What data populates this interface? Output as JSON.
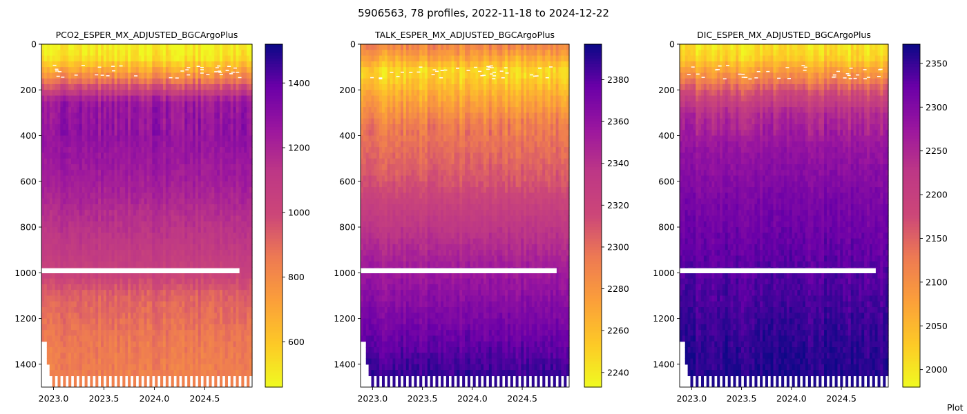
{
  "figure_title": "5906563, 78 profiles, 2022-11-18 to 2024-12-22",
  "footer_text": "Plot",
  "colormap": "plasma",
  "colormap_reversed": true,
  "chart_data": [
    {
      "type": "heatmap",
      "title": "PCO2_ESPER_MX_ADJUSTED_BGCArgoPlus",
      "x_range": [
        2022.88,
        2024.97
      ],
      "x_ticks": [
        2023.0,
        2023.5,
        2024.0,
        2024.5
      ],
      "x_tick_labels": [
        "2023.0",
        "2023.5",
        "2024.0",
        "2024.5"
      ],
      "y_range": [
        0,
        1500
      ],
      "y_inverted": true,
      "y_ticks": [
        0,
        200,
        400,
        600,
        800,
        1000,
        1200,
        1400
      ],
      "y_tick_labels": [
        "0",
        "200",
        "400",
        "600",
        "800",
        "1000",
        "1200",
        "1400"
      ],
      "colorbar_range": [
        460,
        1520
      ],
      "colorbar_ticks": [
        600,
        800,
        1000,
        1200,
        1400
      ],
      "colorbar_tick_labels": [
        "600",
        "800",
        "1000",
        "1200",
        "1400"
      ],
      "profile": [
        {
          "depth": 0,
          "value": 470
        },
        {
          "depth": 60,
          "value": 520
        },
        {
          "depth": 110,
          "value": 680
        },
        {
          "depth": 170,
          "value": 900
        },
        {
          "depth": 250,
          "value": 1250
        },
        {
          "depth": 400,
          "value": 1280
        },
        {
          "depth": 600,
          "value": 1230
        },
        {
          "depth": 800,
          "value": 1140
        },
        {
          "depth": 980,
          "value": 1050
        },
        {
          "depth": 1100,
          "value": 920
        },
        {
          "depth": 1300,
          "value": 860
        },
        {
          "depth": 1500,
          "value": 830
        }
      ]
    },
    {
      "type": "heatmap",
      "title": "TALK_ESPER_MX_ADJUSTED_BGCArgoPlus",
      "x_range": [
        2022.88,
        2024.97
      ],
      "x_ticks": [
        2023.0,
        2023.5,
        2024.0,
        2024.5
      ],
      "x_tick_labels": [
        "2023.0",
        "2023.5",
        "2024.0",
        "2024.5"
      ],
      "y_range": [
        0,
        1500
      ],
      "y_inverted": true,
      "y_ticks": [
        0,
        200,
        400,
        600,
        800,
        1000,
        1200,
        1400
      ],
      "y_tick_labels": [
        "0",
        "200",
        "400",
        "600",
        "800",
        "1000",
        "1200",
        "1400"
      ],
      "colorbar_range": [
        2233,
        2397
      ],
      "colorbar_ticks": [
        2240,
        2260,
        2280,
        2300,
        2320,
        2340,
        2360,
        2380
      ],
      "colorbar_tick_labels": [
        "2240",
        "2260",
        "2280",
        "2300",
        "2320",
        "2340",
        "2360",
        "2380"
      ],
      "profile": [
        {
          "depth": 0,
          "value": 2290
        },
        {
          "depth": 60,
          "value": 2270
        },
        {
          "depth": 120,
          "value": 2245
        },
        {
          "depth": 200,
          "value": 2262
        },
        {
          "depth": 350,
          "value": 2292
        },
        {
          "depth": 600,
          "value": 2310
        },
        {
          "depth": 800,
          "value": 2335
        },
        {
          "depth": 1000,
          "value": 2355
        },
        {
          "depth": 1200,
          "value": 2370
        },
        {
          "depth": 1400,
          "value": 2385
        },
        {
          "depth": 1500,
          "value": 2392
        }
      ]
    },
    {
      "type": "heatmap",
      "title": "DIC_ESPER_MX_ADJUSTED_BGCArgoPlus",
      "x_range": [
        2022.88,
        2024.97
      ],
      "x_ticks": [
        2023.0,
        2023.5,
        2024.0,
        2024.5
      ],
      "x_tick_labels": [
        "2023.0",
        "2023.5",
        "2024.0",
        "2024.5"
      ],
      "y_range": [
        0,
        1500
      ],
      "y_inverted": true,
      "y_ticks": [
        0,
        200,
        400,
        600,
        800,
        1000,
        1200,
        1400
      ],
      "y_tick_labels": [
        "0",
        "200",
        "400",
        "600",
        "800",
        "1000",
        "1200",
        "1400"
      ],
      "colorbar_range": [
        1980,
        2372
      ],
      "colorbar_ticks": [
        2000,
        2050,
        2100,
        2150,
        2200,
        2250,
        2300,
        2350
      ],
      "colorbar_tick_labels": [
        "2000",
        "2050",
        "2100",
        "2150",
        "2200",
        "2250",
        "2300",
        "2350"
      ],
      "profile": [
        {
          "depth": 0,
          "value": 2000
        },
        {
          "depth": 60,
          "value": 2020
        },
        {
          "depth": 120,
          "value": 2080
        },
        {
          "depth": 200,
          "value": 2160
        },
        {
          "depth": 300,
          "value": 2240
        },
        {
          "depth": 450,
          "value": 2280
        },
        {
          "depth": 700,
          "value": 2310
        },
        {
          "depth": 1000,
          "value": 2335
        },
        {
          "depth": 1300,
          "value": 2355
        },
        {
          "depth": 1500,
          "value": 2365
        }
      ]
    }
  ]
}
